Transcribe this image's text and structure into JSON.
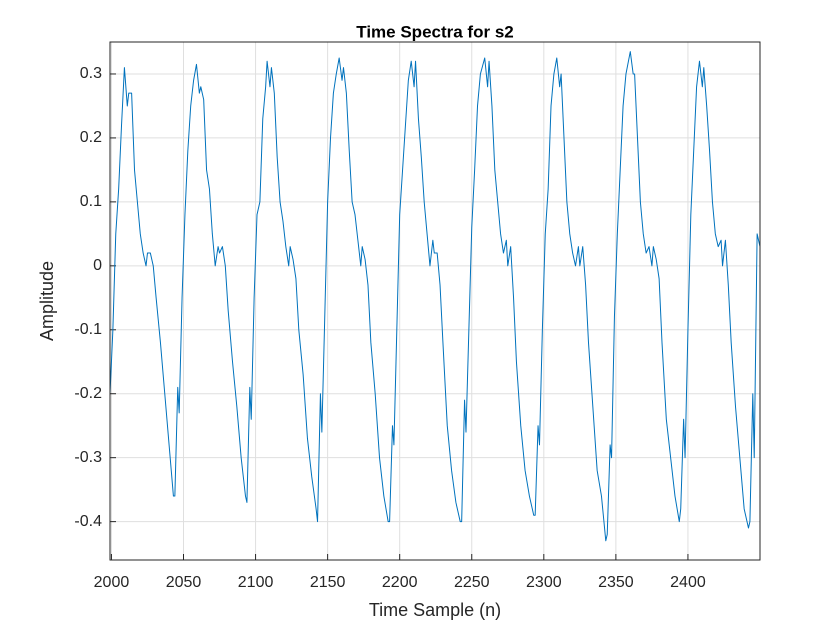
{
  "chart_data": {
    "type": "line",
    "title": "Time Spectra for s2",
    "x_label": "Time Sample (n)",
    "y_label": "Amplitude",
    "xlim": [
      1999,
      2450
    ],
    "ylim": [
      -0.46,
      0.35
    ],
    "xticks": [
      2000,
      2050,
      2100,
      2150,
      2200,
      2250,
      2300,
      2350,
      2400
    ],
    "yticks": [
      -0.4,
      -0.3,
      -0.2,
      -0.1,
      0,
      0.1,
      0.2,
      0.3
    ],
    "grid": true,
    "series": [
      {
        "color": "#0072BD",
        "x": [
          1999,
          2001,
          2003,
          2005,
          2007,
          2009,
          2011,
          2012,
          2014,
          2016,
          2018,
          2020,
          2022,
          2024,
          2025,
          2027,
          2029,
          2031,
          2034,
          2037,
          2040,
          2043,
          2044,
          2046,
          2047,
          2049,
          2051,
          2053,
          2055,
          2057,
          2059,
          2061,
          2062,
          2064,
          2066,
          2068,
          2070,
          2072,
          2074,
          2075,
          2077,
          2079,
          2081,
          2084,
          2087,
          2090,
          2093,
          2094,
          2096,
          2097,
          2099,
          2101,
          2103,
          2105,
          2107,
          2108,
          2110,
          2111,
          2113,
          2115,
          2117,
          2119,
          2121,
          2123,
          2124,
          2126,
          2128,
          2130,
          2133,
          2136,
          2139,
          2142,
          2143,
          2145,
          2146,
          2148,
          2150,
          2152,
          2154,
          2156,
          2158,
          2160,
          2161,
          2163,
          2165,
          2167,
          2169,
          2171,
          2173,
          2174,
          2176,
          2178,
          2180,
          2183,
          2186,
          2189,
          2192,
          2193,
          2195,
          2196,
          2198,
          2200,
          2202,
          2204,
          2206,
          2208,
          2210,
          2211,
          2213,
          2215,
          2217,
          2219,
          2221,
          2223,
          2224,
          2226,
          2228,
          2230,
          2233,
          2236,
          2239,
          2242,
          2243,
          2245,
          2246,
          2248,
          2250,
          2252,
          2254,
          2256,
          2259,
          2261,
          2262,
          2264,
          2266,
          2268,
          2270,
          2272,
          2274,
          2275,
          2277,
          2279,
          2281,
          2284,
          2287,
          2290,
          2293,
          2294,
          2296,
          2297,
          2299,
          2301,
          2303,
          2305,
          2307,
          2309,
          2311,
          2312,
          2314,
          2316,
          2318,
          2320,
          2322,
          2324,
          2325,
          2327,
          2329,
          2331,
          2334,
          2337,
          2340,
          2343,
          2344,
          2346,
          2347,
          2349,
          2351,
          2353,
          2355,
          2357,
          2360,
          2362,
          2363,
          2365,
          2367,
          2369,
          2371,
          2373,
          2375,
          2376,
          2378,
          2380,
          2382,
          2385,
          2388,
          2391,
          2394,
          2395,
          2397,
          2398,
          2400,
          2402,
          2404,
          2406,
          2408,
          2410,
          2411,
          2413,
          2415,
          2417,
          2419,
          2421,
          2423,
          2424,
          2426,
          2428,
          2430,
          2433,
          2436,
          2439,
          2442,
          2443,
          2445,
          2446,
          2448,
          2450
        ],
        "values": [
          -0.2,
          -0.1,
          0.05,
          0.12,
          0.22,
          0.31,
          0.25,
          0.27,
          0.27,
          0.15,
          0.1,
          0.05,
          0.02,
          0.0,
          0.02,
          0.02,
          0.0,
          -0.05,
          -0.12,
          -0.2,
          -0.28,
          -0.36,
          -0.36,
          -0.19,
          -0.23,
          -0.05,
          0.08,
          0.18,
          0.25,
          0.29,
          0.315,
          0.27,
          0.28,
          0.26,
          0.15,
          0.12,
          0.05,
          0.0,
          0.03,
          0.02,
          0.03,
          0.0,
          -0.07,
          -0.15,
          -0.22,
          -0.3,
          -0.36,
          -0.37,
          -0.19,
          -0.24,
          -0.05,
          0.08,
          0.1,
          0.23,
          0.28,
          0.32,
          0.28,
          0.31,
          0.27,
          0.17,
          0.1,
          0.07,
          0.03,
          0.0,
          0.03,
          0.01,
          -0.02,
          -0.1,
          -0.17,
          -0.27,
          -0.33,
          -0.38,
          -0.4,
          -0.2,
          -0.26,
          -0.08,
          0.1,
          0.2,
          0.27,
          0.3,
          0.325,
          0.29,
          0.31,
          0.27,
          0.18,
          0.1,
          0.08,
          0.04,
          0.0,
          0.03,
          0.01,
          -0.03,
          -0.12,
          -0.2,
          -0.3,
          -0.36,
          -0.4,
          -0.4,
          -0.25,
          -0.28,
          -0.1,
          0.08,
          0.15,
          0.22,
          0.29,
          0.32,
          0.28,
          0.32,
          0.23,
          0.17,
          0.1,
          0.05,
          0.0,
          0.04,
          0.02,
          0.02,
          -0.03,
          -0.12,
          -0.25,
          -0.32,
          -0.37,
          -0.4,
          -0.4,
          -0.21,
          -0.26,
          -0.1,
          0.06,
          0.15,
          0.25,
          0.3,
          0.325,
          0.28,
          0.32,
          0.25,
          0.15,
          0.1,
          0.05,
          0.02,
          0.04,
          0.0,
          0.03,
          -0.05,
          -0.15,
          -0.25,
          -0.32,
          -0.36,
          -0.39,
          -0.39,
          -0.25,
          -0.28,
          -0.1,
          0.05,
          0.12,
          0.25,
          0.3,
          0.325,
          0.28,
          0.3,
          0.2,
          0.1,
          0.05,
          0.02,
          0.0,
          0.03,
          0.0,
          0.03,
          -0.03,
          -0.12,
          -0.22,
          -0.32,
          -0.36,
          -0.43,
          -0.42,
          -0.28,
          -0.3,
          -0.08,
          0.05,
          0.15,
          0.25,
          0.3,
          0.335,
          0.3,
          0.3,
          0.2,
          0.1,
          0.05,
          0.02,
          0.03,
          0.0,
          0.03,
          0.01,
          -0.02,
          -0.12,
          -0.24,
          -0.3,
          -0.36,
          -0.4,
          -0.38,
          -0.24,
          -0.3,
          -0.1,
          0.08,
          0.18,
          0.28,
          0.32,
          0.28,
          0.31,
          0.25,
          0.18,
          0.1,
          0.05,
          0.03,
          0.04,
          0.0,
          0.04,
          -0.03,
          -0.12,
          -0.22,
          -0.3,
          -0.38,
          -0.41,
          -0.4,
          -0.2,
          -0.3,
          0.05,
          0.03
        ]
      }
    ]
  }
}
